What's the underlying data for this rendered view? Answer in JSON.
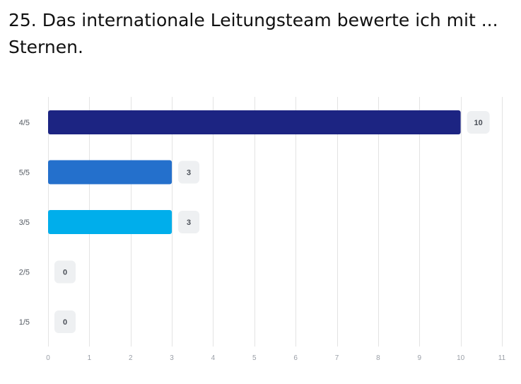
{
  "title": "25. Das internationale Leitungsteam bewerte ich mit ... Sternen.",
  "chart_data": {
    "type": "bar",
    "orientation": "horizontal",
    "categories": [
      "4/5",
      "5/5",
      "3/5",
      "2/5",
      "1/5"
    ],
    "values": [
      10,
      3,
      3,
      0,
      0
    ],
    "colors": [
      "#1c2482",
      "#2470cc",
      "#00aeeb",
      "#2470cc",
      "#2470cc"
    ],
    "xlim": [
      0,
      11
    ],
    "xticks": [
      0,
      1,
      2,
      3,
      4,
      5,
      6,
      7,
      8,
      9,
      10,
      11
    ],
    "title": "25. Das internationale Leitungsteam bewerte ich mit ... Sternen.",
    "xlabel": "",
    "ylabel": "",
    "grid": true,
    "data_labels": true
  }
}
